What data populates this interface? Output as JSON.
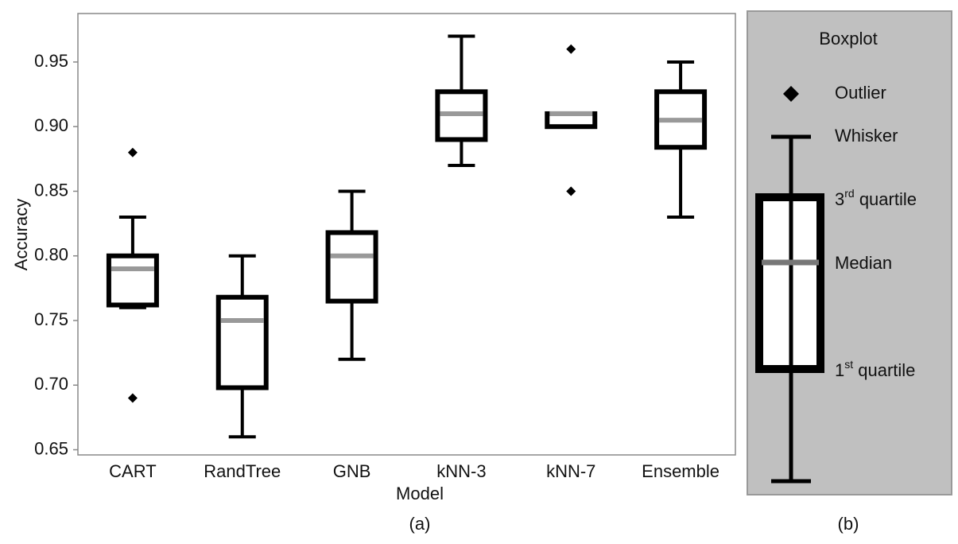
{
  "chart_data": {
    "type": "box",
    "x_label": "Model",
    "y_label": "Accuracy",
    "categories": [
      "CART",
      "RandTree",
      "GNB",
      "kNN-3",
      "kNN-7",
      "Ensemble"
    ],
    "boxes": [
      {
        "whisker_low": 0.76,
        "q1": 0.762,
        "median": 0.79,
        "q3": 0.8,
        "whisker_high": 0.83,
        "outliers": [
          0.88,
          0.69
        ]
      },
      {
        "whisker_low": 0.66,
        "q1": 0.698,
        "median": 0.75,
        "q3": 0.768,
        "whisker_high": 0.8,
        "outliers": []
      },
      {
        "whisker_low": 0.72,
        "q1": 0.765,
        "median": 0.8,
        "q3": 0.818,
        "whisker_high": 0.85,
        "outliers": []
      },
      {
        "whisker_low": 0.87,
        "q1": 0.89,
        "median": 0.91,
        "q3": 0.927,
        "whisker_high": 0.97,
        "outliers": []
      },
      {
        "whisker_low": 0.9,
        "q1": 0.9,
        "median": 0.91,
        "q3": 0.91,
        "whisker_high": 0.91,
        "outliers": [
          0.96,
          0.85
        ]
      },
      {
        "whisker_low": 0.83,
        "q1": 0.884,
        "median": 0.905,
        "q3": 0.927,
        "whisker_high": 0.95,
        "outliers": []
      }
    ],
    "box_color": "#000000",
    "median_color": "#999999",
    "ylim": [
      0.646,
      0.9875
    ],
    "yticks": [
      {
        "value": 0.65,
        "label": "0.65"
      },
      {
        "value": 0.7,
        "label": "0.70"
      },
      {
        "value": 0.75,
        "label": "0.75"
      },
      {
        "value": 0.8,
        "label": "0.80"
      },
      {
        "value": 0.85,
        "label": "0.85"
      },
      {
        "value": 0.9,
        "label": "0.90"
      },
      {
        "value": 0.95,
        "label": "0.95"
      }
    ],
    "grid": false
  },
  "key": {
    "title": "Boxplot",
    "outlier": "Outlier",
    "whisker": "Whisker",
    "q3": {
      "number": "3",
      "suffix": "rd",
      "text": " quartile"
    },
    "median": "Median",
    "q1": {
      "number": "1",
      "suffix": "st",
      "text": " quartile"
    }
  },
  "captions": {
    "a": "(a)",
    "b": "(b)"
  }
}
